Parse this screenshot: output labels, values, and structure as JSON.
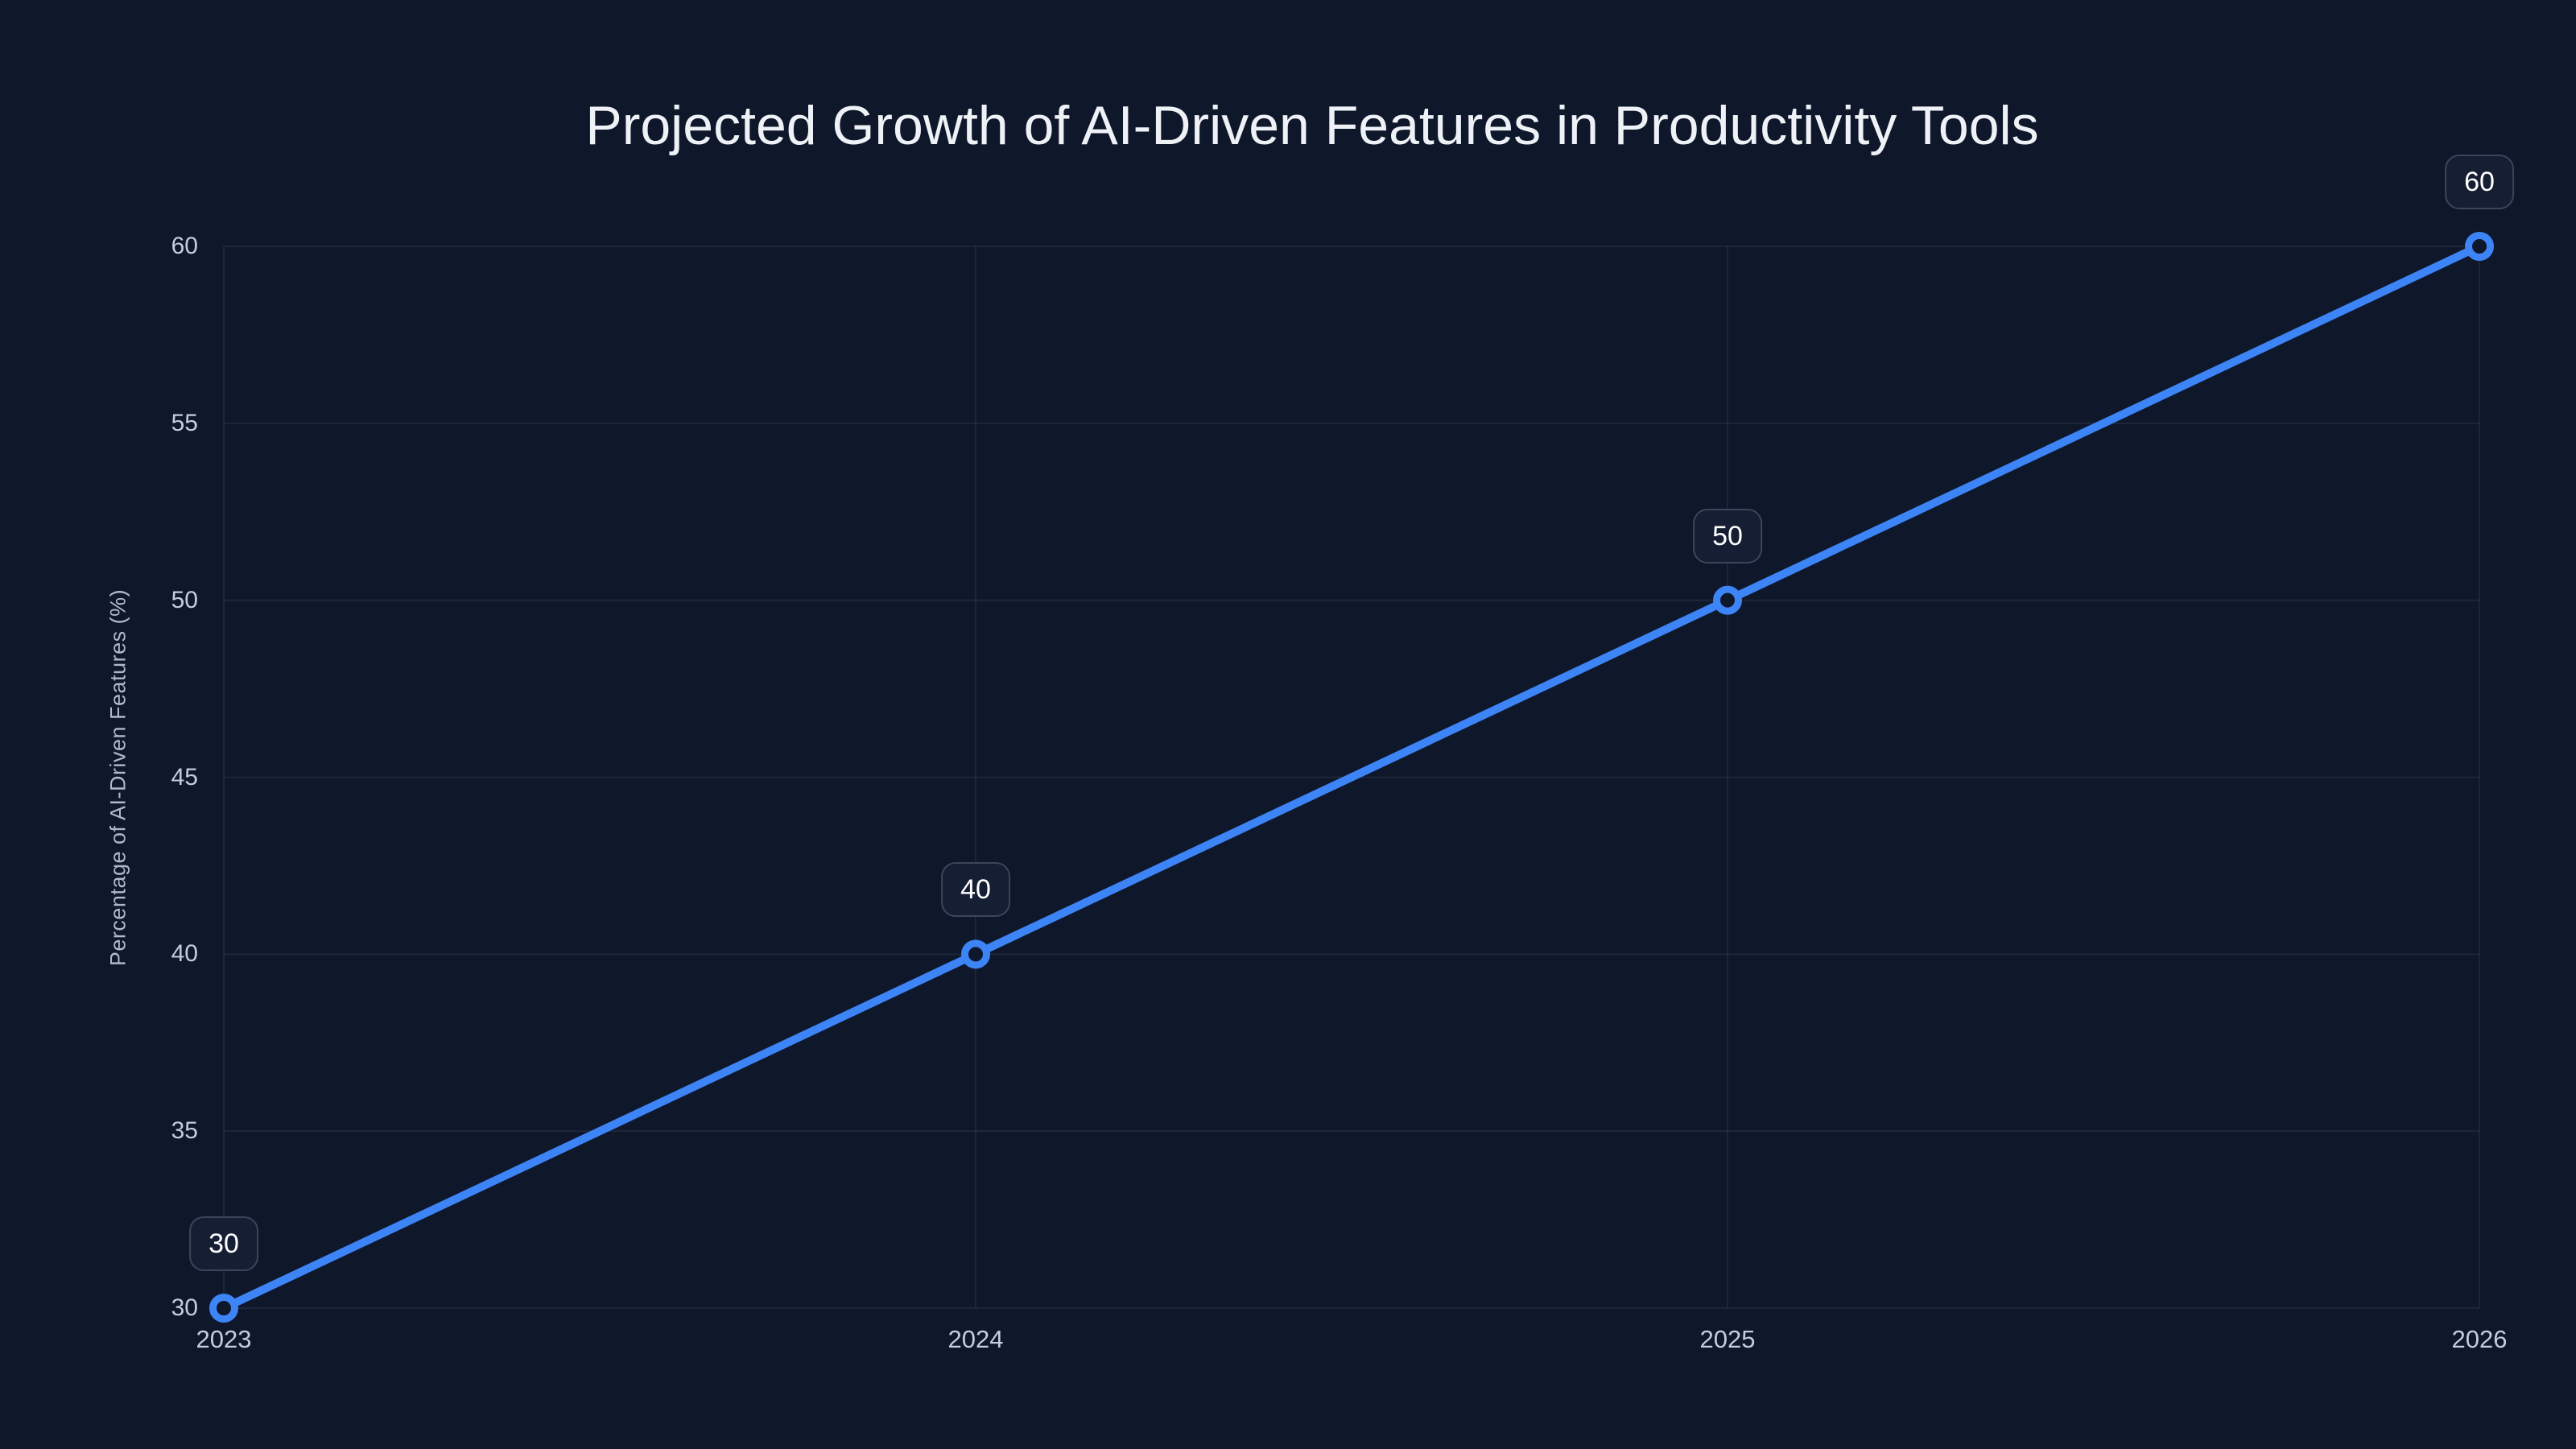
{
  "chart_data": {
    "type": "line",
    "title": "Projected Growth of AI-Driven Features in Productivity Tools",
    "xlabel": "",
    "ylabel": "Percentage of AI-Driven Features (%)",
    "categories": [
      "2023",
      "2024",
      "2025",
      "2026"
    ],
    "values": [
      30,
      40,
      50,
      60
    ],
    "point_labels": [
      "30",
      "40",
      "50",
      "60"
    ],
    "ylim": [
      30,
      60
    ],
    "yticks": [
      30,
      35,
      40,
      45,
      50,
      55,
      60
    ],
    "grid": true,
    "legend": false,
    "colors": {
      "background": "#0f172a",
      "line": "#3d84f7",
      "marker_fill": "#0f172a",
      "grid": "rgba(148,163,184,0.15)",
      "tick_text": "#c3cddc",
      "axis_title_text": "#aeb9c9",
      "title_text": "#eef2f7",
      "label_box_bg": "#151e32",
      "label_box_border": "#3a4659",
      "label_text": "#ffffff"
    }
  }
}
